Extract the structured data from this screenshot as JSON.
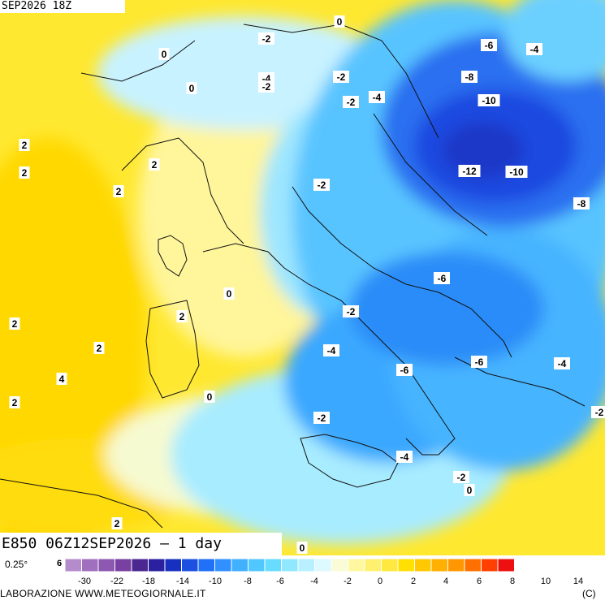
{
  "header": {
    "top_title": "SEP2026 18Z",
    "bottom_title": "E850 06Z12SEP2026 – 1 day"
  },
  "legend": {
    "resolution_label": "0.25°",
    "left_stub": "6",
    "tick_labels": [
      "-30",
      "-22",
      "-18",
      "-14",
      "-10",
      "-8",
      "-6",
      "-4",
      "-2",
      "0",
      "2",
      "4",
      "6",
      "8",
      "10",
      "14"
    ],
    "colors": [
      "#b48ccc",
      "#a070be",
      "#8c58b0",
      "#7840a0",
      "#4a2890",
      "#2a20a0",
      "#1830c0",
      "#1c50e0",
      "#2070f8",
      "#3090ff",
      "#40b0ff",
      "#50c8ff",
      "#68dcff",
      "#90e8ff",
      "#b8f0ff",
      "#dcfaff",
      "#fafcd8",
      "#fff8a0",
      "#fff070",
      "#ffe840",
      "#ffe000",
      "#ffc800",
      "#ffb000",
      "#ff9800",
      "#ff7000",
      "#ff4000",
      "#ee1010"
    ]
  },
  "footer": {
    "credit": "LABORAZIONE  WWW.METEOGIORNALE.IT",
    "copyright": "(C)"
  },
  "contour_labels": [
    {
      "text": "0"
    },
    {
      "text": "-2"
    },
    {
      "text": "0"
    },
    {
      "text": "-4"
    },
    {
      "text": "-2"
    },
    {
      "text": "-2"
    },
    {
      "text": "0"
    },
    {
      "text": "-2"
    },
    {
      "text": "-4"
    },
    {
      "text": "-6"
    },
    {
      "text": "-4"
    },
    {
      "text": "-8"
    },
    {
      "text": "-10"
    },
    {
      "text": "-12"
    },
    {
      "text": "-10"
    },
    {
      "text": "-8"
    },
    {
      "text": "2"
    },
    {
      "text": "2"
    },
    {
      "text": "2"
    },
    {
      "text": "2"
    },
    {
      "text": "-2"
    },
    {
      "text": "-6"
    },
    {
      "text": "0"
    },
    {
      "text": "2"
    },
    {
      "text": "-2"
    },
    {
      "text": "2"
    },
    {
      "text": "2"
    },
    {
      "text": "-4"
    },
    {
      "text": "-6"
    },
    {
      "text": "-6"
    },
    {
      "text": "-4"
    },
    {
      "text": "4"
    },
    {
      "text": "2"
    },
    {
      "text": "0"
    },
    {
      "text": "-2"
    },
    {
      "text": "-2"
    },
    {
      "text": "-4"
    },
    {
      "text": "-2"
    },
    {
      "text": "0"
    },
    {
      "text": "2"
    },
    {
      "text": "0"
    }
  ]
}
